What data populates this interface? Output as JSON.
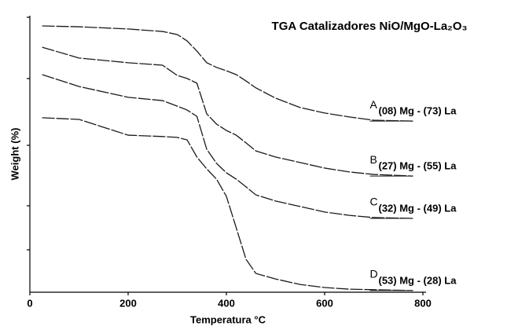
{
  "chart_data": {
    "type": "line",
    "title": "TGA Catalizadores NiO/MgO-La₂O₃",
    "x_label": "Temperatura °C",
    "y_label": "Weight (%)",
    "xlim": [
      0,
      800
    ],
    "xticks": [
      0,
      200,
      400,
      600,
      800
    ],
    "ylim": [
      0,
      100
    ],
    "x": [
      25,
      100,
      200,
      270,
      300,
      320,
      340,
      360,
      380,
      400,
      420,
      440,
      460,
      500,
      550,
      600,
      650,
      700,
      780
    ],
    "series": [
      {
        "name": "A",
        "label": "(08) Mg - (73) La",
        "color": "#1a1a1a",
        "values": [
          96.3,
          96.0,
          95.2,
          94.3,
          93.2,
          90.9,
          87.2,
          83.0,
          81.3,
          80.1,
          78.7,
          76.4,
          73.9,
          70.2,
          66.8,
          64.8,
          63.4,
          62.2,
          61.9
        ]
      },
      {
        "name": "B",
        "label": "(27) Mg - (55) La",
        "color": "#1a1a1a",
        "values": [
          88.6,
          84.7,
          83.0,
          82.1,
          78.4,
          77.3,
          75.6,
          64.5,
          60.8,
          58.5,
          56.8,
          54.0,
          51.1,
          48.9,
          46.9,
          44.9,
          43.5,
          42.6,
          42.0
        ]
      },
      {
        "name": "C",
        "label": "(32) Mg - (49) La",
        "color": "#1a1a1a",
        "values": [
          78.7,
          74.4,
          70.5,
          69.3,
          67.3,
          65.9,
          63.6,
          51.7,
          46.6,
          43.2,
          40.9,
          38.1,
          35.2,
          33.0,
          31.0,
          29.0,
          27.8,
          27.0,
          26.7
        ]
      },
      {
        "name": "D",
        "label": "(53) Mg - (28) La",
        "color": "#1a1a1a",
        "values": [
          63.1,
          62.5,
          56.8,
          56.3,
          56.0,
          55.1,
          48.9,
          44.6,
          40.9,
          34.7,
          23.3,
          11.9,
          6.8,
          4.8,
          2.8,
          1.7,
          1.1,
          0.9,
          0.6
        ]
      }
    ]
  }
}
